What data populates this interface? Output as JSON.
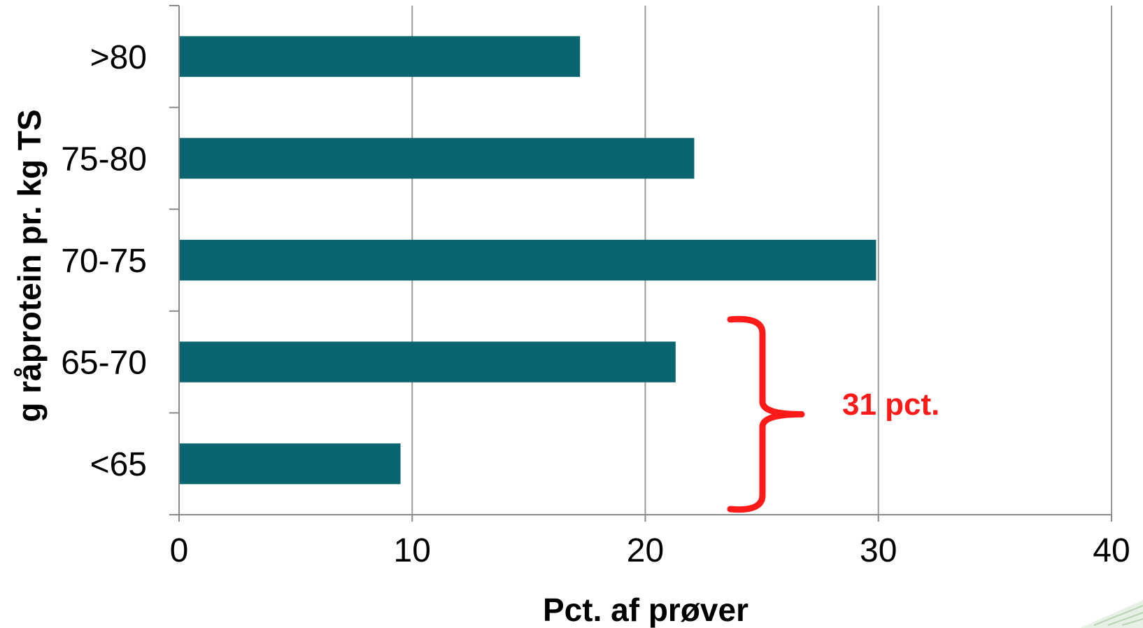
{
  "chart_data": {
    "type": "bar",
    "orientation": "horizontal",
    "categories": [
      ">80",
      "75-80",
      "70-75",
      "65-70",
      "<65"
    ],
    "values": [
      17.2,
      22.1,
      29.9,
      21.3,
      9.5
    ],
    "xlabel": "Pct. af prøver",
    "ylabel": "g råprotein pr. kg TS",
    "xlim": [
      0,
      40
    ],
    "xticks": [
      0,
      10,
      20,
      30,
      40
    ],
    "grid": "vertical",
    "bar_color": "#0b6571",
    "annotation": {
      "text": "31 pct.",
      "color": "#ff1a1a",
      "spans_categories": [
        "65-70",
        "<65"
      ]
    }
  }
}
